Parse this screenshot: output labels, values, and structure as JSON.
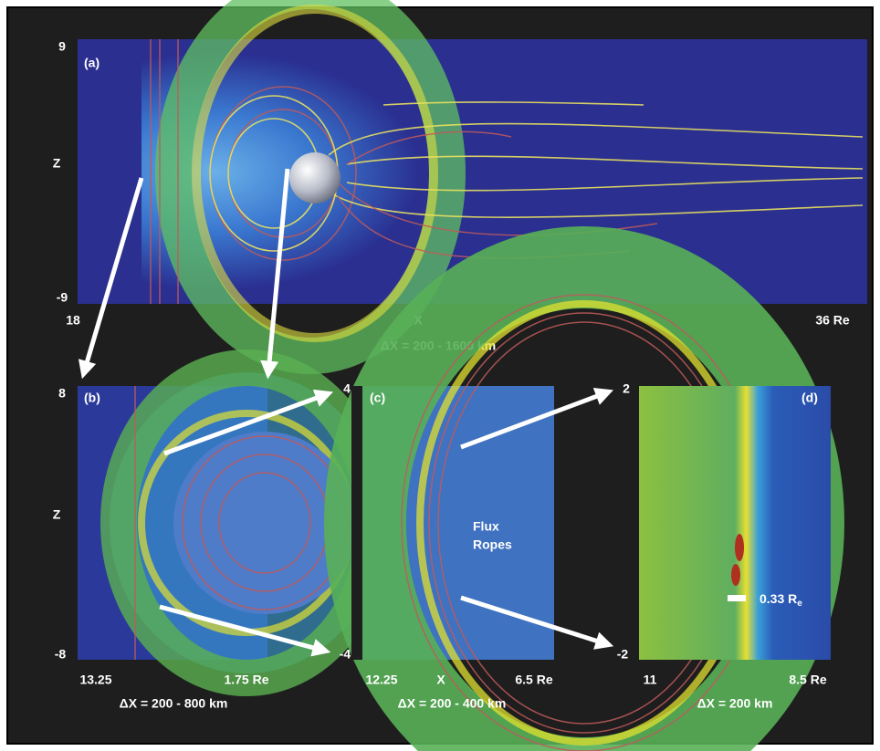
{
  "panels": [
    {
      "label": "(a)",
      "y_top": "9",
      "y_bottom": "-9",
      "y_axis": "Z",
      "x_left": "18",
      "x_axis": "X",
      "x_right": "36 Re",
      "resolution": "ΔX = 200 - 1600 km"
    },
    {
      "label": "(b)",
      "y_top": "8",
      "y_bottom": "-8",
      "y_axis": "Z",
      "x_left": "13.25",
      "x_right": "1.75 Re",
      "resolution": "ΔX = 200 - 800 km",
      "zoom_top": "4",
      "zoom_bottom": "-4"
    },
    {
      "label": "(c)",
      "annotation": [
        "Flux",
        "Ropes"
      ],
      "x_left": "12.25",
      "x_axis": "X",
      "x_right": "6.5 Re",
      "resolution": "ΔX = 200 - 400 km",
      "zoom_top": "2",
      "zoom_bottom": "-2"
    },
    {
      "label": "(d)",
      "scale_bar": {
        "text": "0.33 R",
        "subscript": "e"
      },
      "x_left": "11",
      "x_right": "8.5 Re",
      "resolution": "ΔX = 200 km"
    }
  ]
}
